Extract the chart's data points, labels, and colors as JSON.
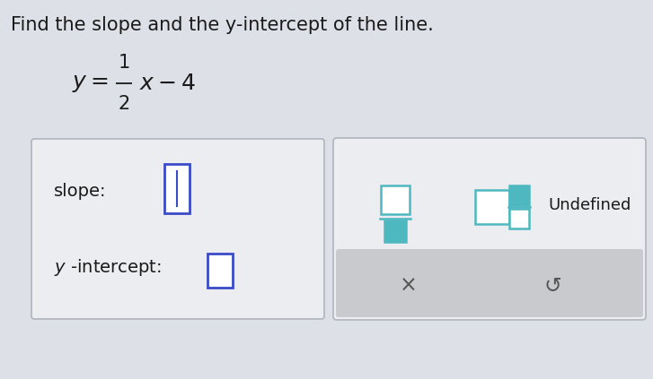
{
  "title": "Find the slope and the y-intercept of the line.",
  "bg_color": "#dde0e6",
  "box_bg": "#ecedf1",
  "box_border": "#b0b4bc",
  "answer_box_border_slope": "#3b4bc8",
  "answer_box_border_yint": "#3b4bc8",
  "teal_color": "#4db8c0",
  "slope_label": "slope:",
  "yintercept_label": "y -intercept:",
  "undefined_label": "Undefined",
  "x_symbol": "×",
  "redo_symbol": "↺",
  "bottom_bar_color": "#c8cace",
  "title_fontsize": 15,
  "label_fontsize": 14,
  "eq_fontsize": 18,
  "undefined_fontsize": 13,
  "symbol_fontsize": 15
}
